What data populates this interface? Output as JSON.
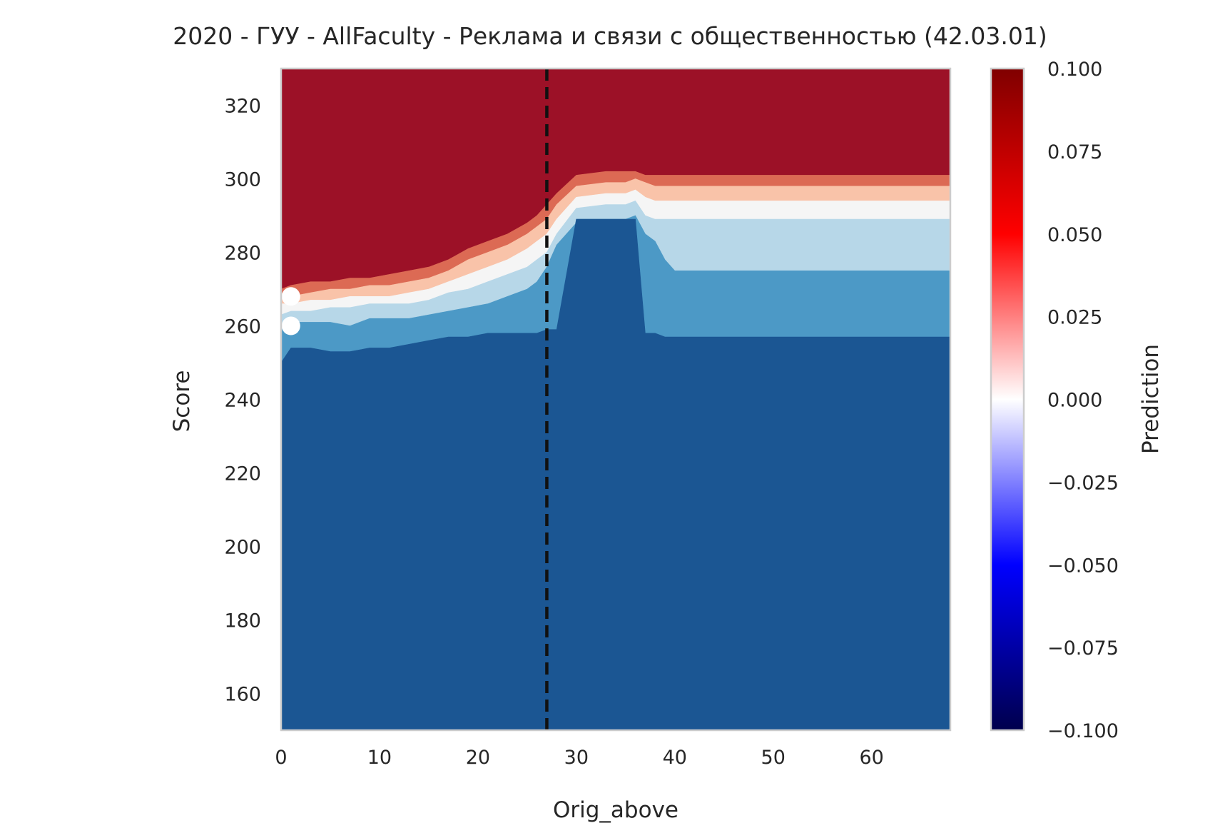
{
  "chart_data": {
    "type": "heatmap",
    "title": "2020 - ГУУ - AllFaculty - Реклама и связи с общественностью (42.03.01)",
    "xlabel": "Orig_above",
    "ylabel": "Score",
    "xlim": [
      0,
      68
    ],
    "ylim": [
      150,
      330
    ],
    "x_ticks": [
      "0",
      "10",
      "20",
      "30",
      "40",
      "50",
      "60"
    ],
    "x_tick_values": [
      0,
      10,
      20,
      30,
      40,
      50,
      60
    ],
    "y_ticks": [
      "160",
      "180",
      "200",
      "220",
      "240",
      "260",
      "280",
      "300",
      "320"
    ],
    "y_tick_values": [
      160,
      180,
      200,
      220,
      240,
      260,
      280,
      300,
      320
    ],
    "grid": false,
    "colorbar": {
      "label": "Prediction",
      "range": [
        -0.1,
        0.1
      ],
      "ticks": [
        "0.100",
        "0.075",
        "0.050",
        "0.025",
        "0.000",
        "−0.025",
        "−0.050",
        "−0.075",
        "−0.100"
      ],
      "tick_values": [
        0.1,
        0.075,
        0.05,
        0.025,
        0.0,
        -0.025,
        -0.05,
        -0.075,
        -0.1
      ],
      "colormap": "seismic"
    },
    "contour_levels": [
      {
        "min": 0.075,
        "color": "#9c1127"
      },
      {
        "min": 0.05,
        "color": "#dc6a54"
      },
      {
        "min": 0.025,
        "color": "#f9c3a9"
      },
      {
        "min": 0.0,
        "color": "#f5f5f5"
      },
      {
        "min": -0.025,
        "color": "#b7d7e8"
      },
      {
        "min": -0.05,
        "color": "#4c99c6"
      },
      {
        "min": -0.1,
        "color": "#1b5693"
      }
    ],
    "boundaries_x": [
      0,
      1,
      3,
      5,
      7,
      9,
      11,
      13,
      15,
      17,
      19,
      21,
      23,
      25,
      26,
      27,
      28,
      30,
      33,
      35,
      36,
      37,
      38,
      39,
      40,
      45,
      50,
      55,
      60,
      65,
      68
    ],
    "boundaries": {
      "b75": [
        270,
        271,
        272,
        272,
        273,
        273,
        274,
        275,
        276,
        278,
        281,
        283,
        285,
        288,
        290,
        293,
        296,
        301,
        302,
        302,
        302,
        301,
        301,
        301,
        301,
        301,
        301,
        301,
        301,
        301,
        301
      ],
      "b50": [
        269,
        268,
        269,
        270,
        270,
        271,
        271,
        272,
        273,
        275,
        278,
        280,
        282,
        285,
        287,
        289,
        293,
        298,
        299,
        299,
        300,
        299,
        298,
        298,
        298,
        298,
        298,
        298,
        298,
        298,
        298
      ],
      "b25": [
        266,
        266,
        267,
        267,
        268,
        268,
        268,
        269,
        270,
        272,
        274,
        276,
        278,
        281,
        283,
        285,
        289,
        295,
        296,
        296,
        297,
        295,
        294,
        294,
        294,
        294,
        294,
        294,
        294,
        294,
        294
      ],
      "b00": [
        263,
        264,
        264,
        265,
        265,
        266,
        266,
        266,
        267,
        269,
        270,
        272,
        274,
        276,
        278,
        280,
        285,
        292,
        293,
        293,
        294,
        290,
        289,
        289,
        289,
        289,
        289,
        289,
        289,
        289,
        289
      ],
      "bm25": [
        259,
        261,
        261,
        261,
        260,
        262,
        262,
        262,
        263,
        264,
        265,
        266,
        268,
        270,
        272,
        276,
        282,
        288,
        289,
        289,
        290,
        285,
        283,
        278,
        275,
        275,
        275,
        275,
        275,
        275,
        275
      ],
      "bm50": [
        250,
        254,
        254,
        253,
        253,
        254,
        254,
        255,
        256,
        257,
        257,
        258,
        258,
        258,
        258,
        259,
        259,
        289,
        289,
        289,
        289,
        258,
        258,
        257,
        257,
        257,
        257,
        257,
        257,
        257,
        257
      ]
    },
    "vertical_line": {
      "x": 27,
      "style": "dashed",
      "color": "#111111"
    },
    "points": [
      {
        "x": 1,
        "y": 268,
        "color": "#ffffff"
      },
      {
        "x": 1,
        "y": 260,
        "color": "#ffffff"
      }
    ]
  }
}
